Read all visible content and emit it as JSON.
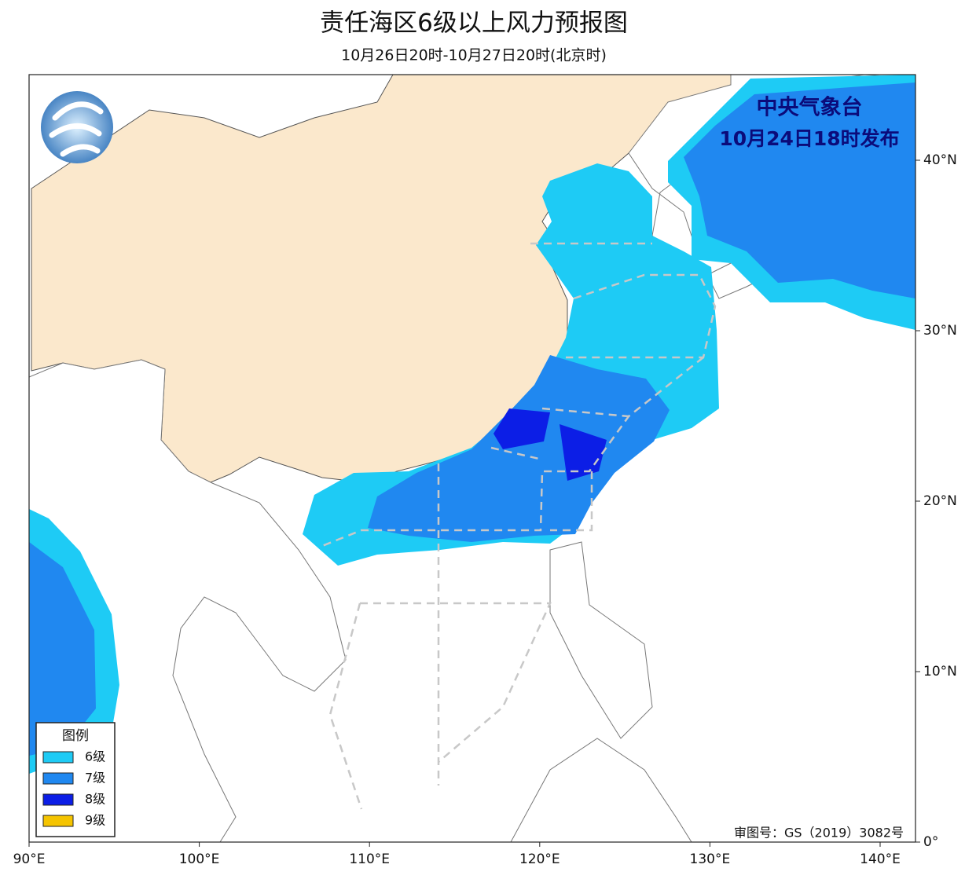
{
  "header": {
    "title": "责任海区6级以上风力预报图",
    "subtitle": "10月26日20时-10月27日20时(北京时)"
  },
  "publisher": {
    "name": "中央气象台",
    "time": "10月24日18时发布"
  },
  "legend": {
    "title": "图例",
    "items": [
      {
        "label": "6级",
        "color": "#1ecbf5"
      },
      {
        "label": "7级",
        "color": "#2088f0"
      },
      {
        "label": "8级",
        "color": "#0c1ee6"
      },
      {
        "label": "9级",
        "color": "#f5c400"
      }
    ]
  },
  "axes": {
    "xlim": [
      90,
      142
    ],
    "ylim": [
      0,
      45
    ],
    "xticks": [
      {
        "value": 90,
        "label": "90°E"
      },
      {
        "value": 100,
        "label": "100°E"
      },
      {
        "value": 110,
        "label": "110°E"
      },
      {
        "value": 120,
        "label": "120°E"
      },
      {
        "value": 130,
        "label": "130°E"
      },
      {
        "value": 140,
        "label": "140°E"
      }
    ],
    "yticks": [
      {
        "value": 0,
        "label": "0°"
      },
      {
        "value": 10,
        "label": "10°N"
      },
      {
        "value": 20,
        "label": "20°N"
      },
      {
        "value": 30,
        "label": "30°N"
      },
      {
        "value": 40,
        "label": "40°N"
      }
    ]
  },
  "approval": "审图号：GS（2019）3082号"
}
